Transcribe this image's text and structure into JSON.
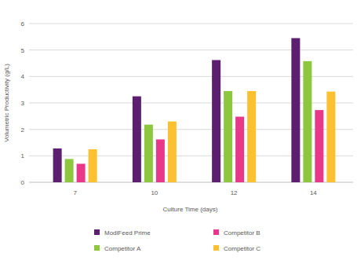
{
  "chart_data": {
    "type": "bar",
    "x_label": "Culture Time (days)",
    "y_label": "Volumetric Productivity (g/L)",
    "categories": [
      "7",
      "10",
      "12",
      "14"
    ],
    "series": [
      {
        "name": "ModiFeed Prime",
        "color": "#5c1e6e",
        "values": [
          1.28,
          3.25,
          4.62,
          5.45
        ]
      },
      {
        "name": "Competitor A",
        "color": "#8dc63f",
        "values": [
          0.88,
          2.18,
          3.45,
          4.58
        ]
      },
      {
        "name": "Competitor B",
        "color": "#e8388a",
        "values": [
          0.7,
          1.62,
          2.48,
          2.73
        ]
      },
      {
        "name": "Competitor C",
        "color": "#fbc130",
        "values": [
          1.25,
          2.3,
          3.45,
          3.43
        ]
      }
    ],
    "ylim": [
      0,
      6
    ],
    "yticks": [
      0,
      1,
      2,
      3,
      4,
      5,
      6
    ],
    "grid": true,
    "legend": "bottom"
  }
}
